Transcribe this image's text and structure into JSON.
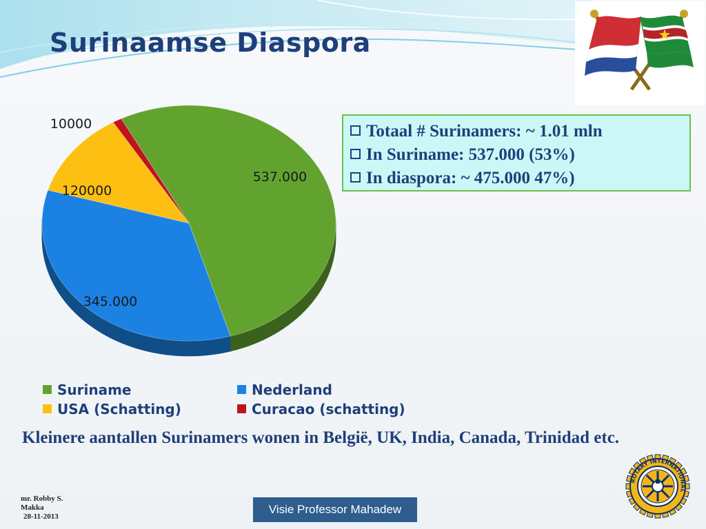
{
  "slide": {
    "title": "Surinaamse Diaspora",
    "info_lines": [
      "Totaal # Surinamers: ~ 1.01 mln",
      "In Suriname: 537.000 (53%)",
      "In diaspora: ~ 475.000 47%)"
    ],
    "note": "Kleinere aantallen Surinamers wonen in België, UK, India, Canada, Trinidad etc.",
    "author_lines": [
      "mr. Robby S.",
      "Makka",
      "28-11-2013"
    ],
    "footer": "Visie Professor Mahadew",
    "icons": [
      "netherlands-suriname-flags-icon",
      "rotary-international-logo-icon"
    ],
    "logo_text": "ROTARY INTERNATIONAL"
  },
  "chart_data": {
    "type": "pie",
    "categories": [
      "Suriname",
      "Nederland",
      "USA (Schatting)",
      "Curacao (schatting)"
    ],
    "values": [
      537000,
      345000,
      120000,
      10000
    ],
    "data_labels": [
      "537.000",
      "345.000",
      "120000",
      "10000"
    ],
    "colors": [
      "#62a330",
      "#1b82e3",
      "#fdbf12",
      "#c0141b"
    ],
    "legend_position": "bottom"
  }
}
